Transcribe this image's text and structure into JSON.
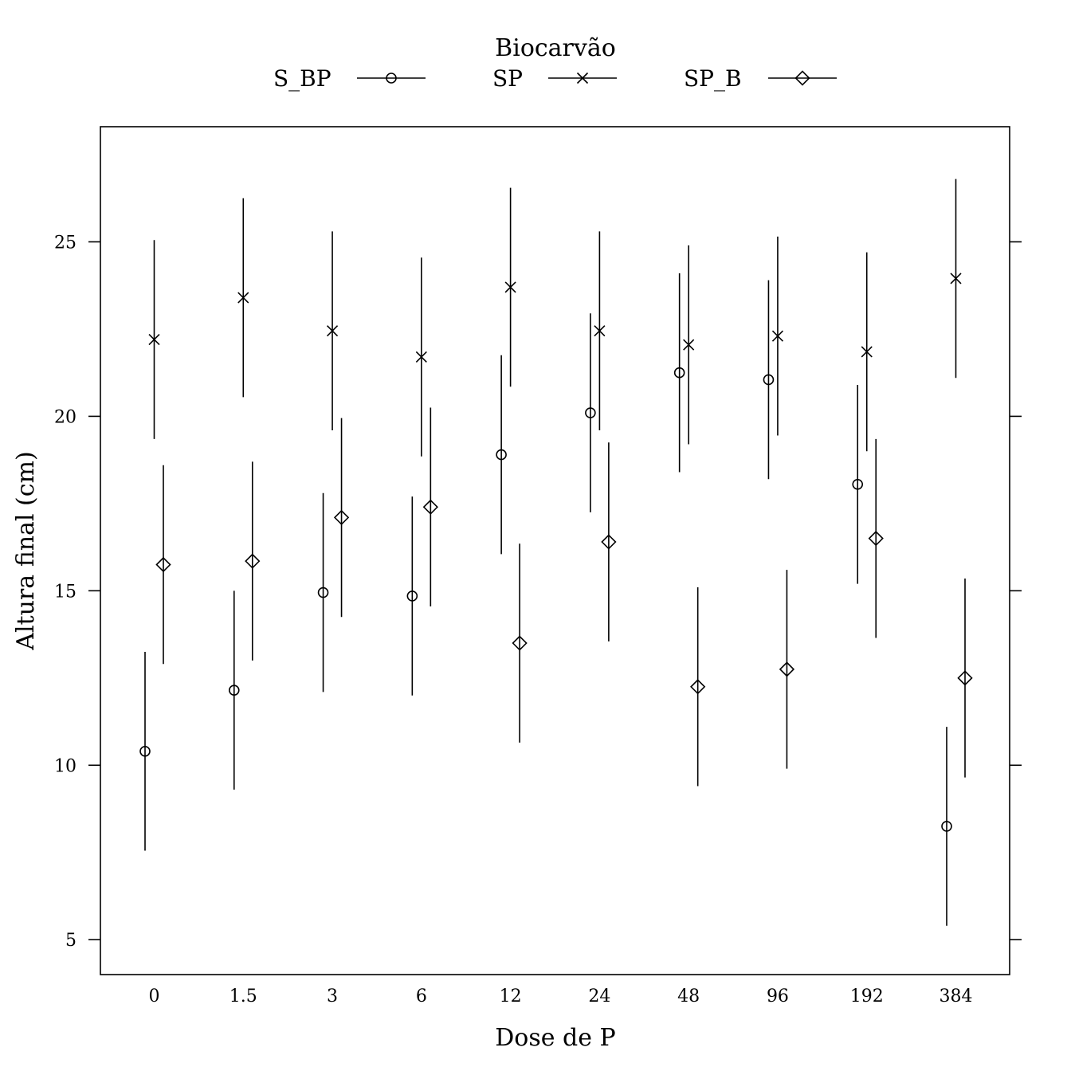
{
  "chart_data": {
    "type": "scatter",
    "title": "",
    "xlabel": "Dose de P",
    "ylabel": "Altura final (cm)",
    "categories": [
      "0",
      "1.5",
      "3",
      "6",
      "12",
      "24",
      "48",
      "96",
      "192",
      "384"
    ],
    "ylim": [
      4,
      28.3
    ],
    "yticks": [
      5,
      10,
      15,
      20,
      25
    ],
    "grid": false,
    "error_bars": true,
    "legend": {
      "title": "Biocarvão",
      "position": "top",
      "entries": [
        {
          "name": "S_BP",
          "marker": "circle"
        },
        {
          "name": "SP",
          "marker": "cross"
        },
        {
          "name": "SP_B",
          "marker": "diamond"
        }
      ]
    },
    "series": [
      {
        "name": "S_BP",
        "marker": "circle",
        "values": [
          10.4,
          12.15,
          14.95,
          14.85,
          18.9,
          20.1,
          21.25,
          21.05,
          18.05,
          8.25
        ],
        "lower": [
          7.55,
          9.3,
          12.1,
          12.0,
          16.05,
          17.25,
          18.4,
          18.2,
          15.2,
          5.4
        ],
        "upper": [
          13.25,
          15.0,
          17.8,
          17.7,
          21.75,
          22.95,
          24.1,
          23.9,
          20.9,
          11.1
        ]
      },
      {
        "name": "SP",
        "marker": "cross",
        "values": [
          22.2,
          23.4,
          22.45,
          21.7,
          23.7,
          22.45,
          22.05,
          22.3,
          21.85,
          23.95
        ],
        "lower": [
          19.35,
          20.55,
          19.6,
          18.85,
          20.85,
          19.6,
          19.2,
          19.45,
          19.0,
          21.1
        ],
        "upper": [
          25.05,
          26.25,
          25.3,
          24.55,
          26.55,
          25.3,
          24.9,
          25.15,
          24.7,
          26.8
        ]
      },
      {
        "name": "SP_B",
        "marker": "diamond",
        "values": [
          15.75,
          15.85,
          17.1,
          17.4,
          13.5,
          16.4,
          12.25,
          12.75,
          16.5,
          12.5
        ],
        "lower": [
          12.9,
          13.0,
          14.25,
          14.55,
          10.65,
          13.55,
          9.4,
          9.9,
          13.65,
          9.65
        ],
        "upper": [
          18.6,
          18.7,
          19.95,
          20.25,
          16.35,
          19.25,
          15.1,
          15.6,
          19.35,
          15.35
        ]
      }
    ]
  }
}
